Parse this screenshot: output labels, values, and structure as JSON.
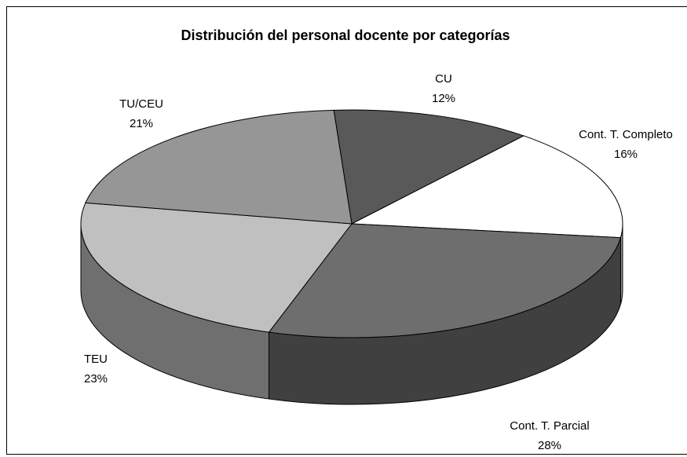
{
  "chart_data": {
    "type": "pie",
    "title": "Distribución del personal docente por categorías",
    "categories": [
      "CU",
      "Cont. T. Completo",
      "Cont. T. Parcial",
      "TEU",
      "TU/CEU"
    ],
    "values": [
      12,
      16,
      28,
      23,
      21
    ],
    "value_labels": [
      "12%",
      "16%",
      "28%",
      "23%",
      "21%"
    ],
    "colors": [
      "#595959",
      "#ffffff",
      "#6e6e6e",
      "#c0c0c0",
      "#969696"
    ]
  }
}
